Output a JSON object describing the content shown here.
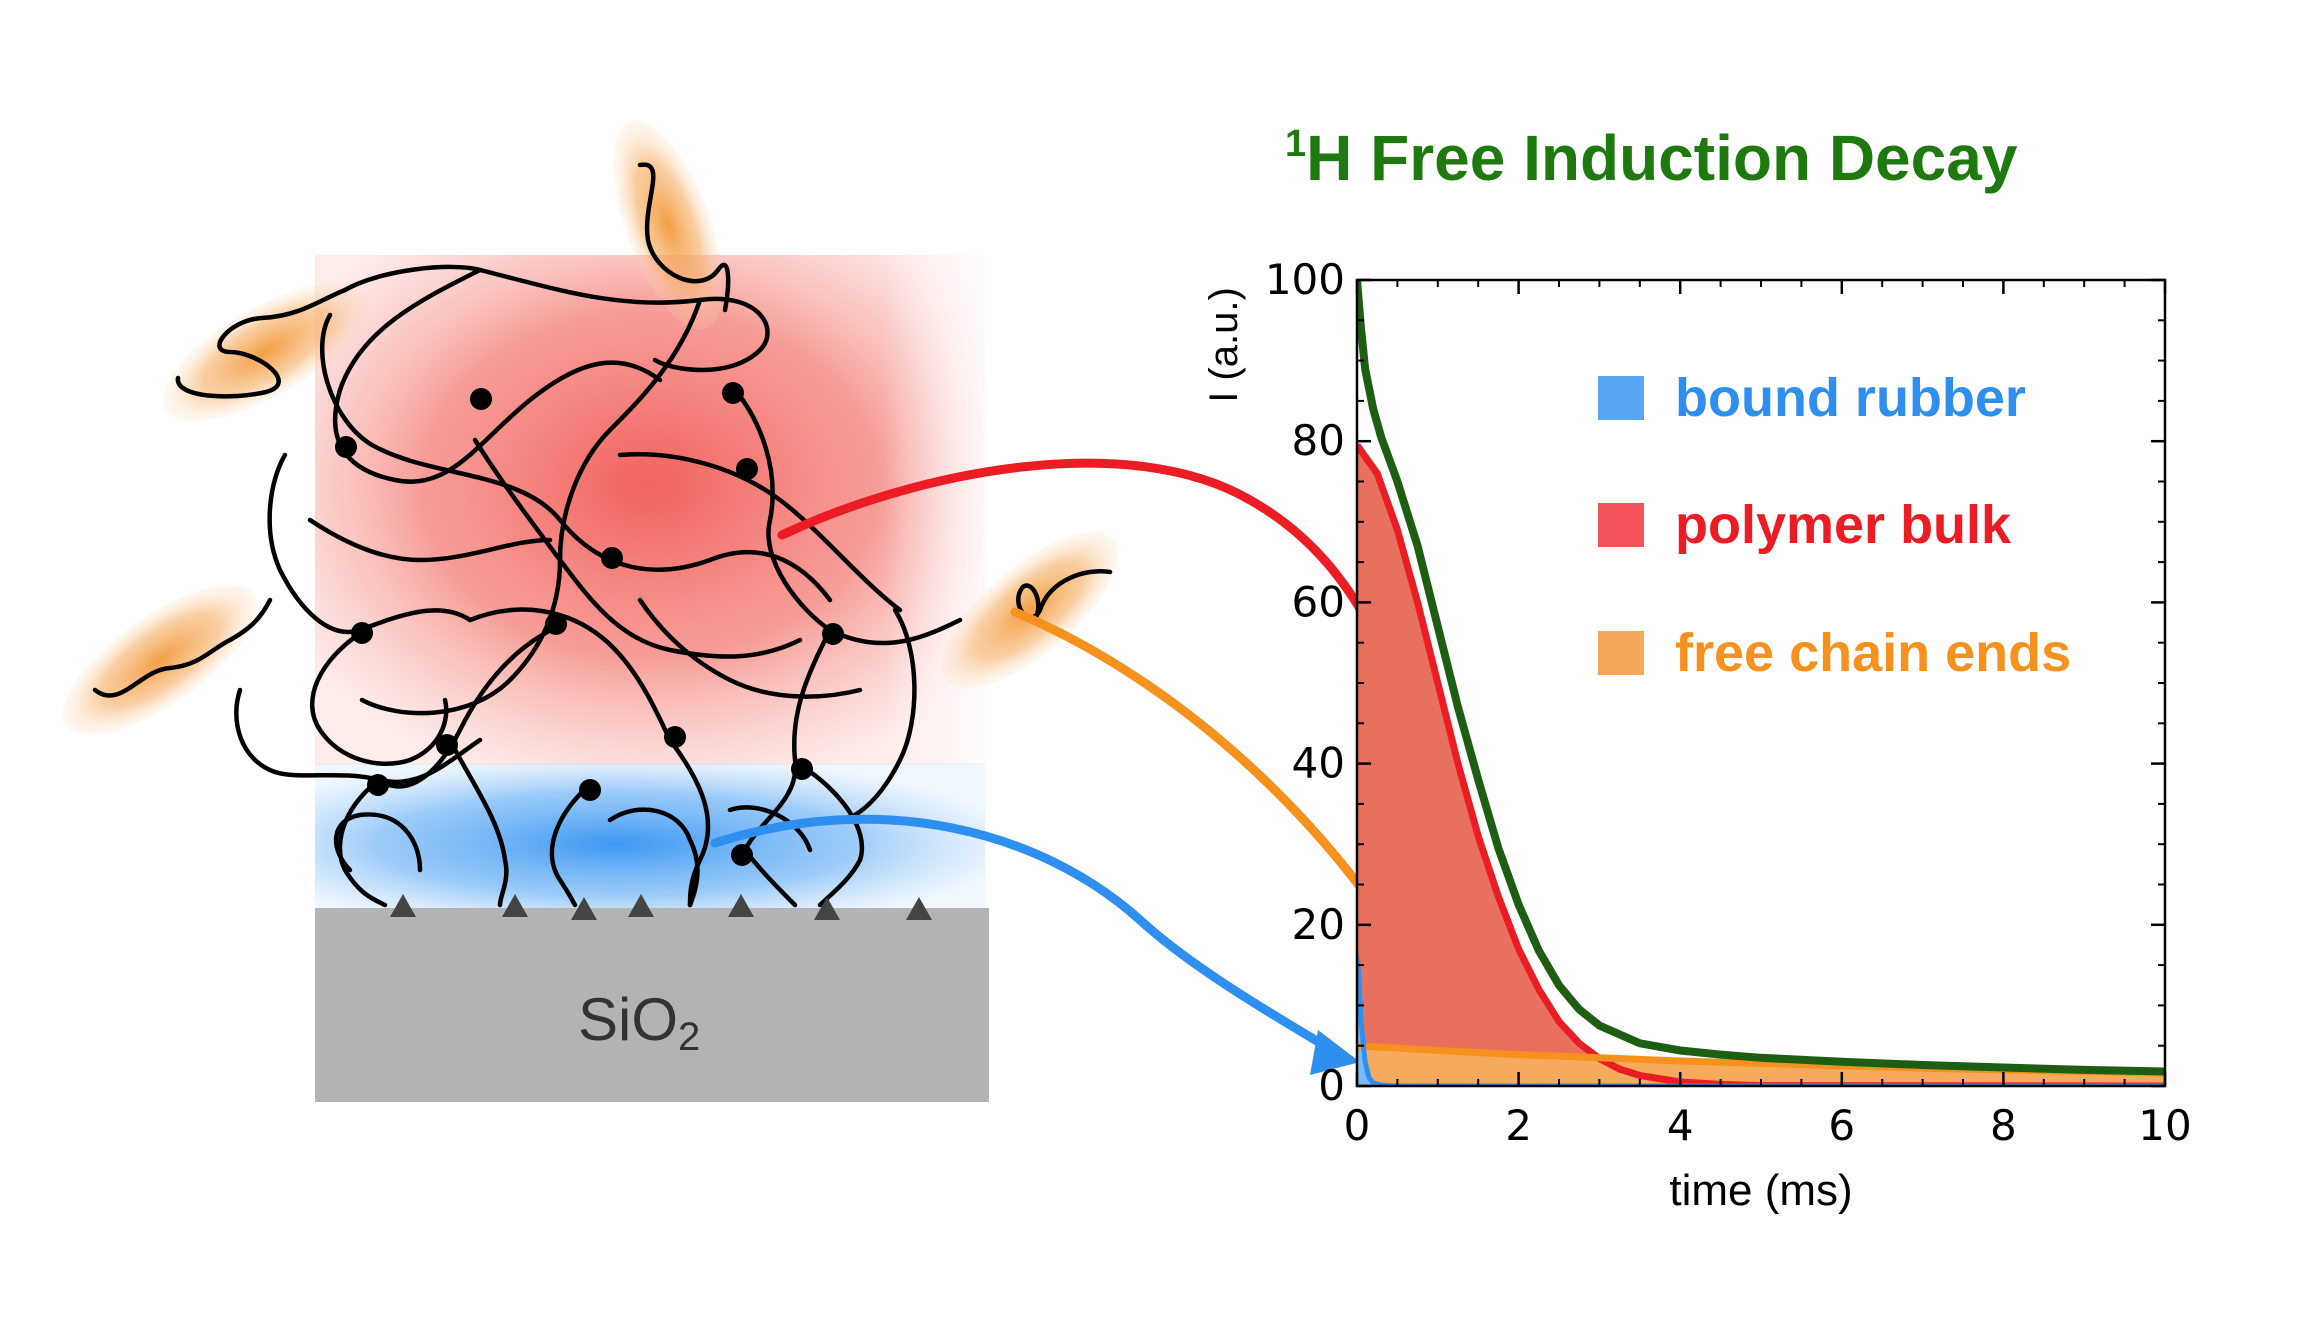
{
  "title": {
    "superscript": "1",
    "text": "H Free Induction Decay",
    "color": "#1e7a0f"
  },
  "substrate": {
    "label_main": "SiO",
    "label_sub": "2",
    "color": "#b3b3b3"
  },
  "colors": {
    "bound_rubber": "#2f8fef",
    "polymer_bulk": "#ec1c24",
    "free_chain_ends": "#f7911e",
    "total": "#1d5e12",
    "bulk_fill": "#e8705f",
    "ends_fill": "#f6ab5c",
    "region_red": "#f5877f",
    "region_blue": "#5aa8f5",
    "chains": "#000000"
  },
  "legend": [
    {
      "key": "bound_rubber",
      "label": "bound rubber",
      "swatch": "#59a6f5",
      "text_color": "#2f8fef"
    },
    {
      "key": "polymer_bulk",
      "label": "polymer bulk",
      "swatch": "#f2545a",
      "text_color": "#ec1c24"
    },
    {
      "key": "free_chain_ends",
      "label": "free chain ends",
      "swatch": "#f6a85a",
      "text_color": "#f7911e"
    }
  ],
  "chart_data": {
    "type": "area",
    "xlabel": "time (ms)",
    "ylabel": "I (a.u.)",
    "xlim": [
      0,
      10
    ],
    "ylim": [
      0,
      100
    ],
    "xticks": [
      "0",
      "2",
      "4",
      "6",
      "8",
      "10"
    ],
    "yticks": [
      "0",
      "20",
      "40",
      "60",
      "80",
      "100"
    ],
    "grid": false,
    "legend_position": "top-right",
    "series": [
      {
        "name": "bound rubber",
        "x": [
          0,
          0.02,
          0.05,
          0.1,
          0.15,
          0.2,
          0.3,
          0.5,
          10
        ],
        "y": [
          16,
          14,
          8,
          3,
          1,
          0.4,
          0.1,
          0,
          0
        ]
      },
      {
        "name": "polymer bulk",
        "x": [
          0,
          0.25,
          0.5,
          0.75,
          1.0,
          1.25,
          1.5,
          1.75,
          2.0,
          2.25,
          2.5,
          2.75,
          3.0,
          3.25,
          3.5,
          4.0,
          4.5,
          5.0,
          10
        ],
        "y": [
          79.5,
          76,
          69,
          60,
          50,
          40,
          31,
          23.5,
          17,
          12,
          8,
          5.3,
          3.4,
          2.1,
          1.3,
          0.5,
          0.2,
          0.05,
          0
        ]
      },
      {
        "name": "free chain ends",
        "x": [
          0,
          1,
          2,
          3,
          4,
          5,
          6,
          7,
          8,
          9,
          10
        ],
        "y": [
          5,
          4.4,
          3.9,
          3.5,
          3.1,
          2.8,
          2.5,
          2.2,
          2.0,
          1.8,
          1.6
        ]
      },
      {
        "name": "",
        "x": [
          0,
          0.05,
          0.1,
          0.2,
          0.3,
          0.5,
          0.75,
          1.0,
          1.25,
          1.5,
          1.75,
          2.0,
          2.25,
          2.5,
          2.75,
          3.0,
          3.5,
          4.0,
          4.5,
          5.0,
          6.0,
          7.0,
          8.0,
          9.0,
          10.0
        ],
        "y": [
          100,
          94,
          89,
          84,
          80.5,
          75,
          67,
          57,
          47,
          38,
          29.5,
          22.5,
          16.8,
          12.5,
          9.5,
          7.5,
          5.3,
          4.4,
          3.9,
          3.5,
          3.0,
          2.6,
          2.3,
          2.0,
          1.8
        ]
      }
    ]
  }
}
